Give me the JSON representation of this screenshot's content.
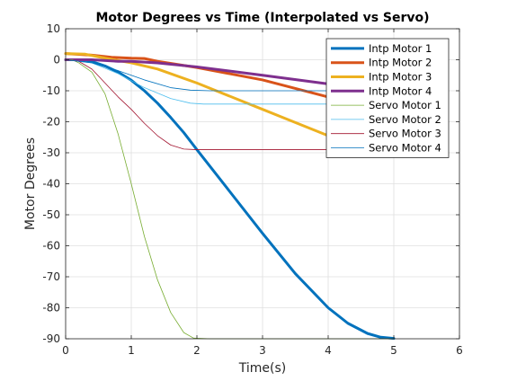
{
  "chart_data": {
    "type": "line",
    "title": "Motor Degrees vs Time (Interpolated vs Servo)",
    "xlabel": "Time(s)",
    "ylabel": "Motor Degrees",
    "xlim": [
      0,
      6
    ],
    "ylim": [
      -90,
      10
    ],
    "xticks": [
      0,
      1,
      2,
      3,
      4,
      5,
      6
    ],
    "yticks": [
      10,
      0,
      -10,
      -20,
      -30,
      -40,
      -50,
      -60,
      -70,
      -80,
      -90
    ],
    "grid": true,
    "legend_position": "top-right",
    "series": [
      {
        "name": "Intp Motor 1",
        "color": "#0072BD",
        "width": 3,
        "points": [
          [
            0,
            0
          ],
          [
            0.2,
            0
          ],
          [
            0.4,
            -0.6
          ],
          [
            0.6,
            -2.0
          ],
          [
            0.8,
            -4.0
          ],
          [
            1.0,
            -6.6
          ],
          [
            1.2,
            -10.0
          ],
          [
            1.4,
            -14.0
          ],
          [
            1.6,
            -18.6
          ],
          [
            1.8,
            -23.5
          ],
          [
            2.0,
            -29.0
          ],
          [
            2.5,
            -42.5
          ],
          [
            3.0,
            -56.0
          ],
          [
            3.5,
            -69.0
          ],
          [
            4.0,
            -80.0
          ],
          [
            4.3,
            -85.0
          ],
          [
            4.6,
            -88.3
          ],
          [
            4.8,
            -89.5
          ],
          [
            5.0,
            -89.9
          ]
        ]
      },
      {
        "name": "Intp Motor 2",
        "color": "#D95319",
        "width": 3,
        "points": [
          [
            0,
            2
          ],
          [
            0.4,
            1.5
          ],
          [
            0.7,
            0.8
          ],
          [
            1.0,
            0.5
          ],
          [
            1.2,
            0.4
          ],
          [
            1.4,
            -0.5
          ],
          [
            2.0,
            -2.5
          ],
          [
            3.0,
            -6.5
          ],
          [
            4.0,
            -12.0
          ],
          [
            4.3,
            -14.0
          ]
        ]
      },
      {
        "name": "Intp Motor 3",
        "color": "#EDB120",
        "width": 3,
        "points": [
          [
            0,
            2
          ],
          [
            0.3,
            1.8
          ],
          [
            0.6,
            0.5
          ],
          [
            1.0,
            -1.0
          ],
          [
            1.4,
            -3.0
          ],
          [
            2.0,
            -7.5
          ],
          [
            3.0,
            -16.0
          ],
          [
            4.0,
            -24.5
          ],
          [
            4.3,
            -26.5
          ]
        ]
      },
      {
        "name": "Intp Motor 4",
        "color": "#7E2F8E",
        "width": 3,
        "points": [
          [
            0,
            0
          ],
          [
            0.4,
            0
          ],
          [
            0.8,
            -0.5
          ],
          [
            1.0,
            -0.5
          ],
          [
            1.4,
            -1.0
          ],
          [
            2.0,
            -2.3
          ],
          [
            3.0,
            -5.0
          ],
          [
            4.0,
            -7.8
          ],
          [
            4.3,
            -8.5
          ]
        ]
      },
      {
        "name": "Servo Motor 1",
        "color": "#77AC30",
        "width": 0.8,
        "points": [
          [
            0,
            0
          ],
          [
            0.1,
            0
          ],
          [
            0.2,
            -1.0
          ],
          [
            0.4,
            -4.0
          ],
          [
            0.6,
            -11.0
          ],
          [
            0.8,
            -24.0
          ],
          [
            1.0,
            -40.0
          ],
          [
            1.2,
            -57.0
          ],
          [
            1.4,
            -71.0
          ],
          [
            1.6,
            -81.5
          ],
          [
            1.8,
            -88.0
          ],
          [
            1.95,
            -89.8
          ],
          [
            2.2,
            -90.0
          ],
          [
            5.0,
            -90.0
          ]
        ]
      },
      {
        "name": "Servo Motor 2",
        "color": "#4DBEEE",
        "width": 0.8,
        "points": [
          [
            0,
            0
          ],
          [
            0.4,
            -1.0
          ],
          [
            0.8,
            -4.5
          ],
          [
            1.2,
            -9.0
          ],
          [
            1.6,
            -12.5
          ],
          [
            1.9,
            -14.0
          ],
          [
            2.1,
            -14.3
          ],
          [
            4.3,
            -14.3
          ]
        ]
      },
      {
        "name": "Servo Motor 3",
        "color": "#A2142F",
        "width": 0.8,
        "points": [
          [
            0,
            0
          ],
          [
            0.2,
            -0.5
          ],
          [
            0.4,
            -3.0
          ],
          [
            0.6,
            -7.5
          ],
          [
            0.8,
            -12.0
          ],
          [
            1.0,
            -16.0
          ],
          [
            1.2,
            -20.5
          ],
          [
            1.4,
            -24.5
          ],
          [
            1.6,
            -27.5
          ],
          [
            1.8,
            -28.8
          ],
          [
            2.0,
            -29.0
          ],
          [
            4.3,
            -29.0
          ]
        ]
      },
      {
        "name": "Servo Motor 4",
        "color": "#0072BD",
        "width": 0.8,
        "points": [
          [
            0,
            0
          ],
          [
            0.4,
            -1.0
          ],
          [
            0.8,
            -3.5
          ],
          [
            1.2,
            -6.5
          ],
          [
            1.6,
            -9.0
          ],
          [
            1.9,
            -9.8
          ],
          [
            2.2,
            -10.0
          ],
          [
            4.3,
            -10.0
          ]
        ]
      }
    ]
  }
}
